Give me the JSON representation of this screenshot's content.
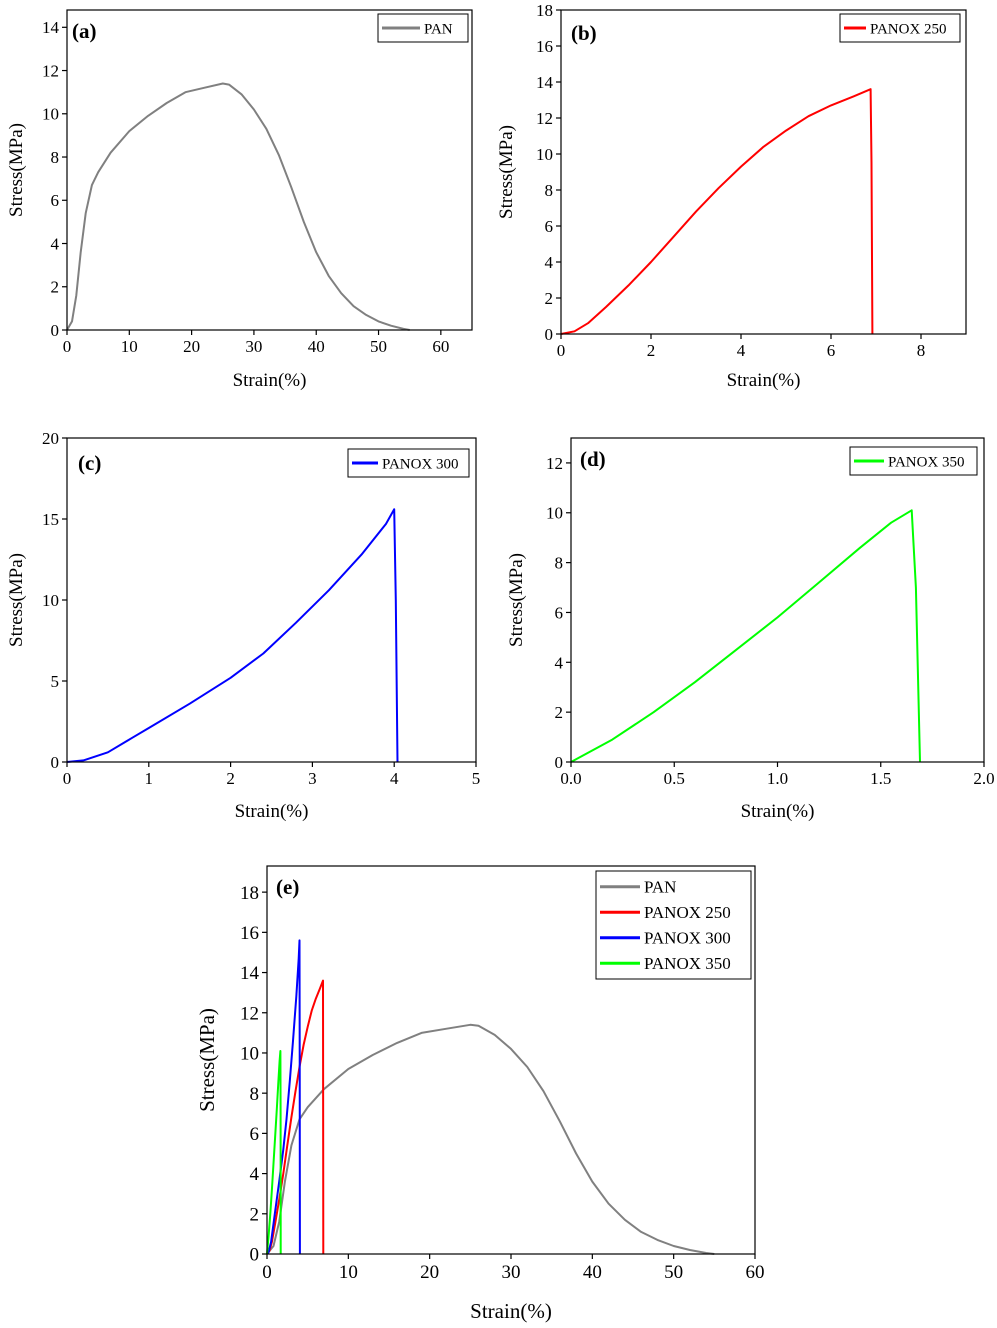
{
  "chart_data": [
    {
      "panel": "(a)",
      "type": "line",
      "xlabel": "Strain(%)",
      "ylabel": "Stress(MPa)",
      "xlim": [
        0,
        65
      ],
      "ylim": [
        0,
        14.8
      ],
      "xticks": [
        0,
        10,
        20,
        30,
        40,
        50,
        60
      ],
      "xtick_labels": [
        "0",
        "10",
        "20",
        "30",
        "40",
        "50",
        "60"
      ],
      "yticks": [
        0,
        2,
        4,
        6,
        8,
        10,
        12,
        14
      ],
      "ytick_labels": [
        "0",
        "2",
        "4",
        "6",
        "8",
        "10",
        "12",
        "14"
      ],
      "legend_position": "top-right",
      "series": [
        {
          "name": "PAN",
          "color": "#808080",
          "points": [
            [
              0,
              0
            ],
            [
              0.8,
              0.4
            ],
            [
              1.5,
              1.6
            ],
            [
              2.2,
              3.6
            ],
            [
              3,
              5.4
            ],
            [
              4,
              6.7
            ],
            [
              5,
              7.3
            ],
            [
              7,
              8.2
            ],
            [
              10,
              9.2
            ],
            [
              13,
              9.9
            ],
            [
              16,
              10.5
            ],
            [
              19,
              11.0
            ],
            [
              22,
              11.2
            ],
            [
              25,
              11.4
            ],
            [
              26,
              11.35
            ],
            [
              28,
              10.9
            ],
            [
              30,
              10.2
            ],
            [
              32,
              9.3
            ],
            [
              34,
              8.1
            ],
            [
              36,
              6.6
            ],
            [
              38,
              5.0
            ],
            [
              40,
              3.6
            ],
            [
              42,
              2.5
            ],
            [
              44,
              1.7
            ],
            [
              46,
              1.1
            ],
            [
              48,
              0.7
            ],
            [
              50,
              0.4
            ],
            [
              52,
              0.2
            ],
            [
              54,
              0.05
            ],
            [
              55,
              0
            ]
          ]
        }
      ]
    },
    {
      "panel": "(b)",
      "type": "line",
      "xlabel": "Strain(%)",
      "ylabel": "Stress(MPa)",
      "xlim": [
        0,
        9
      ],
      "ylim": [
        0,
        18
      ],
      "xticks": [
        0,
        2,
        4,
        6,
        8
      ],
      "xtick_labels": [
        "0",
        "2",
        "4",
        "6",
        "8"
      ],
      "yticks": [
        0,
        2,
        4,
        6,
        8,
        10,
        12,
        14,
        16,
        18
      ],
      "ytick_labels": [
        "0",
        "2",
        "4",
        "6",
        "8",
        "10",
        "12",
        "14",
        "16",
        "18"
      ],
      "legend_position": "top-right",
      "series": [
        {
          "name": "PANOX 250",
          "color": "#ff0000",
          "points": [
            [
              0,
              0
            ],
            [
              0.3,
              0.15
            ],
            [
              0.6,
              0.6
            ],
            [
              1,
              1.5
            ],
            [
              1.5,
              2.7
            ],
            [
              2,
              4.0
            ],
            [
              2.5,
              5.4
            ],
            [
              3,
              6.8
            ],
            [
              3.5,
              8.1
            ],
            [
              4,
              9.3
            ],
            [
              4.5,
              10.4
            ],
            [
              5,
              11.3
            ],
            [
              5.5,
              12.1
            ],
            [
              6,
              12.7
            ],
            [
              6.5,
              13.2
            ],
            [
              6.88,
              13.6
            ],
            [
              6.9,
              9.5
            ],
            [
              6.92,
              0
            ]
          ]
        }
      ]
    },
    {
      "panel": "(c)",
      "type": "line",
      "xlabel": "Strain(%)",
      "ylabel": "Stress(MPa)",
      "xlim": [
        0,
        5
      ],
      "ylim": [
        0,
        20
      ],
      "xticks": [
        0,
        1,
        2,
        3,
        4,
        5
      ],
      "xtick_labels": [
        "0",
        "1",
        "2",
        "3",
        "4",
        "5"
      ],
      "yticks": [
        0,
        5,
        10,
        15,
        20
      ],
      "ytick_labels": [
        "0",
        "5",
        "10",
        "15",
        "20"
      ],
      "legend_position": "top-right",
      "series": [
        {
          "name": "PANOX 300",
          "color": "#0000ff",
          "points": [
            [
              0,
              0
            ],
            [
              0.2,
              0.1
            ],
            [
              0.5,
              0.6
            ],
            [
              0.8,
              1.5
            ],
            [
              1,
              2.1
            ],
            [
              1.5,
              3.6
            ],
            [
              2,
              5.2
            ],
            [
              2.4,
              6.7
            ],
            [
              2.8,
              8.6
            ],
            [
              3.2,
              10.6
            ],
            [
              3.6,
              12.8
            ],
            [
              3.9,
              14.7
            ],
            [
              4.0,
              15.6
            ],
            [
              4.02,
              10.0
            ],
            [
              4.04,
              0
            ]
          ]
        }
      ]
    },
    {
      "panel": "(d)",
      "type": "line",
      "xlabel": "Strain(%)",
      "ylabel": "Stress(MPa)",
      "xlim": [
        0,
        2.0
      ],
      "ylim": [
        0,
        13
      ],
      "xticks": [
        0,
        0.5,
        1.0,
        1.5,
        2.0
      ],
      "xtick_labels": [
        "0.0",
        "0.5",
        "1.0",
        "1.5",
        "2.0"
      ],
      "yticks": [
        0,
        2,
        4,
        6,
        8,
        10,
        12
      ],
      "ytick_labels": [
        "0",
        "2",
        "4",
        "6",
        "8",
        "10",
        "12"
      ],
      "legend_position": "top-right",
      "series": [
        {
          "name": "PANOX 350",
          "color": "#00ff00",
          "points": [
            [
              0,
              0
            ],
            [
              0.2,
              0.9
            ],
            [
              0.4,
              2.0
            ],
            [
              0.6,
              3.2
            ],
            [
              0.8,
              4.5
            ],
            [
              1.0,
              5.8
            ],
            [
              1.2,
              7.2
            ],
            [
              1.4,
              8.6
            ],
            [
              1.55,
              9.6
            ],
            [
              1.65,
              10.1
            ],
            [
              1.67,
              7.0
            ],
            [
              1.69,
              0
            ]
          ]
        }
      ]
    },
    {
      "panel": "(e)",
      "type": "line",
      "xlabel": "Strain(%)",
      "ylabel": "Stress(MPa)",
      "xlim": [
        0,
        60
      ],
      "ylim": [
        0,
        19.3
      ],
      "xticks": [
        0,
        10,
        20,
        30,
        40,
        50,
        60
      ],
      "xtick_labels": [
        "0",
        "10",
        "20",
        "30",
        "40",
        "50",
        "60"
      ],
      "yticks": [
        0,
        2,
        4,
        6,
        8,
        10,
        12,
        14,
        16,
        18
      ],
      "ytick_labels": [
        "0",
        "2",
        "4",
        "6",
        "8",
        "10",
        "12",
        "14",
        "16",
        "18"
      ],
      "legend_position": "top-right",
      "series": [
        {
          "name": "PAN",
          "color": "#808080",
          "points": [
            [
              0,
              0
            ],
            [
              0.8,
              0.4
            ],
            [
              1.5,
              1.6
            ],
            [
              2.2,
              3.6
            ],
            [
              3,
              5.4
            ],
            [
              4,
              6.7
            ],
            [
              5,
              7.3
            ],
            [
              7,
              8.2
            ],
            [
              10,
              9.2
            ],
            [
              13,
              9.9
            ],
            [
              16,
              10.5
            ],
            [
              19,
              11.0
            ],
            [
              22,
              11.2
            ],
            [
              25,
              11.4
            ],
            [
              26,
              11.35
            ],
            [
              28,
              10.9
            ],
            [
              30,
              10.2
            ],
            [
              32,
              9.3
            ],
            [
              34,
              8.1
            ],
            [
              36,
              6.6
            ],
            [
              38,
              5.0
            ],
            [
              40,
              3.6
            ],
            [
              42,
              2.5
            ],
            [
              44,
              1.7
            ],
            [
              46,
              1.1
            ],
            [
              48,
              0.7
            ],
            [
              50,
              0.4
            ],
            [
              52,
              0.2
            ],
            [
              54,
              0.05
            ],
            [
              55,
              0
            ]
          ]
        },
        {
          "name": "PANOX 250",
          "color": "#ff0000",
          "points": [
            [
              0,
              0
            ],
            [
              0.3,
              0.15
            ],
            [
              0.6,
              0.6
            ],
            [
              1,
              1.5
            ],
            [
              1.5,
              2.7
            ],
            [
              2,
              4.0
            ],
            [
              2.5,
              5.4
            ],
            [
              3,
              6.8
            ],
            [
              3.5,
              8.1
            ],
            [
              4,
              9.3
            ],
            [
              4.5,
              10.4
            ],
            [
              5,
              11.3
            ],
            [
              5.5,
              12.1
            ],
            [
              6,
              12.7
            ],
            [
              6.5,
              13.2
            ],
            [
              6.88,
              13.6
            ],
            [
              6.9,
              9.5
            ],
            [
              6.92,
              0
            ]
          ]
        },
        {
          "name": "PANOX 300",
          "color": "#0000ff",
          "points": [
            [
              0,
              0
            ],
            [
              0.2,
              0.1
            ],
            [
              0.5,
              0.6
            ],
            [
              0.8,
              1.5
            ],
            [
              1,
              2.1
            ],
            [
              1.5,
              3.6
            ],
            [
              2,
              5.2
            ],
            [
              2.4,
              6.7
            ],
            [
              2.8,
              8.6
            ],
            [
              3.2,
              10.6
            ],
            [
              3.6,
              12.8
            ],
            [
              3.9,
              14.7
            ],
            [
              4.0,
              15.6
            ],
            [
              4.02,
              10.0
            ],
            [
              4.04,
              0
            ]
          ]
        },
        {
          "name": "PANOX 350",
          "color": "#00ff00",
          "points": [
            [
              0,
              0
            ],
            [
              0.2,
              0.9
            ],
            [
              0.4,
              2.0
            ],
            [
              0.6,
              3.2
            ],
            [
              0.8,
              4.5
            ],
            [
              1.0,
              5.8
            ],
            [
              1.2,
              7.2
            ],
            [
              1.4,
              8.6
            ],
            [
              1.55,
              9.6
            ],
            [
              1.65,
              10.1
            ],
            [
              1.67,
              7.0
            ],
            [
              1.69,
              0
            ]
          ]
        }
      ]
    }
  ]
}
